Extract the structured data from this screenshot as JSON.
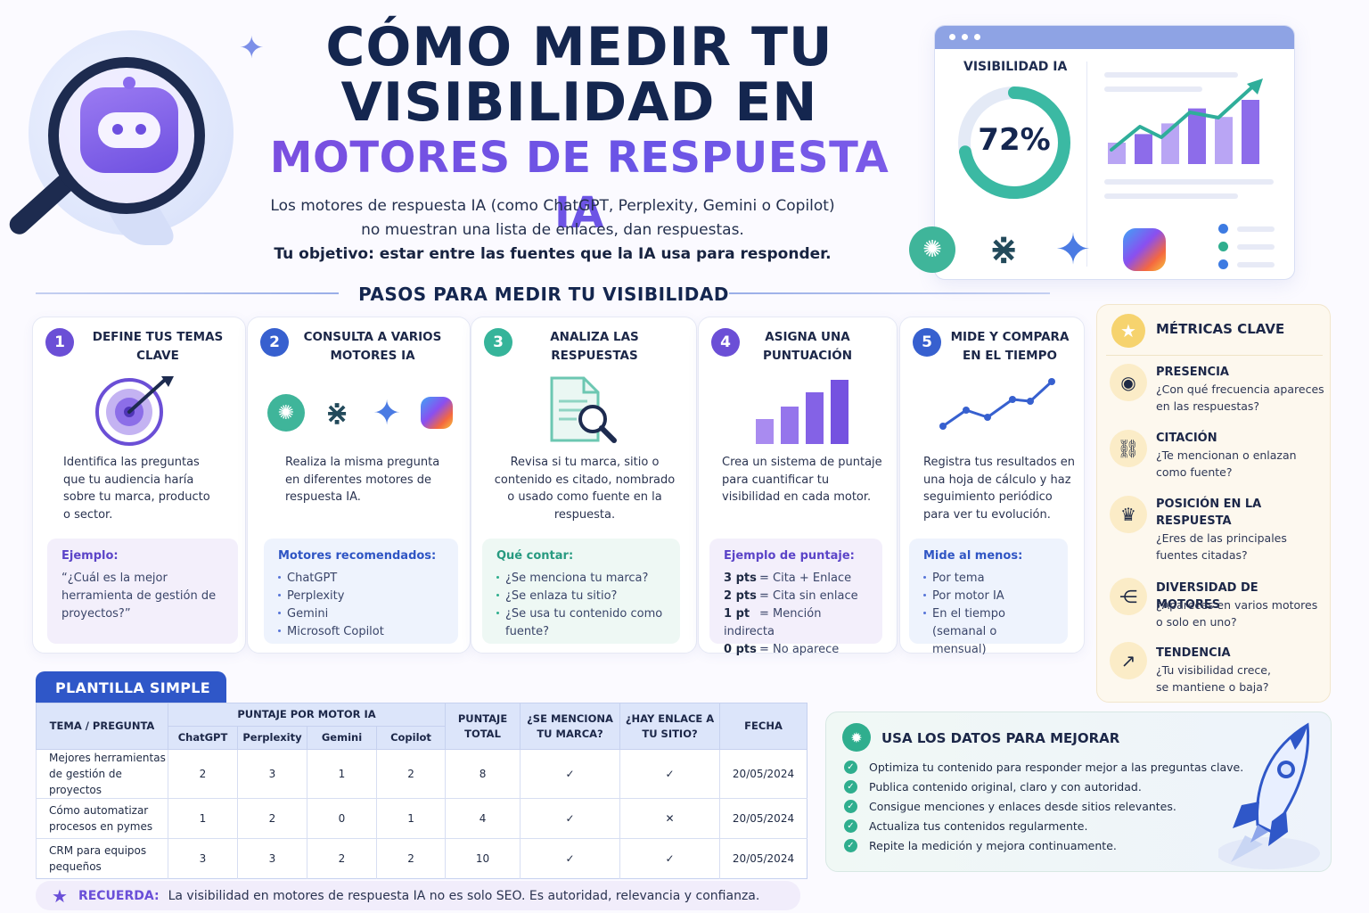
{
  "hero": {
    "title_line1": "CÓMO MEDIR TU",
    "title_line2": "VISIBILIDAD EN",
    "title_line3": "MOTORES DE RESPUESTA IA",
    "intro_line1": "Los motores de respuesta IA (como ChatGPT, Perplexity, Gemini o Copilot)",
    "intro_line2": "no muestran una lista de enlaces, dan respuestas.",
    "intro_bold": "Tu objetivo: estar entre las fuentes que la IA usa para responder."
  },
  "dashboard": {
    "label": "VISIBILIDAD IA",
    "value_text": "72%",
    "value": 0.72,
    "bars": [
      20,
      28,
      38,
      52,
      44,
      60
    ],
    "engines": [
      "chatgpt-icon",
      "perplexity-icon",
      "gemini-icon",
      "copilot-icon"
    ]
  },
  "steps_title": "PASOS PARA MEDIR TU VISIBILIDAD",
  "steps": [
    {
      "number": "1",
      "title": "DEFINE TUS TEMAS CLAVE",
      "description": "Identifica las preguntas que tu audiencia haría sobre tu marca, producto o sector.",
      "box_title": "Ejemplo:",
      "box_text": "“¿Cuál es la mejor herramienta de gestión de proyectos?”",
      "color": "#6b4fd6",
      "box_bg": "#f3effb",
      "box_title_color": "#5b44c8"
    },
    {
      "number": "2",
      "title": "CONSULTA A VARIOS MOTORES IA",
      "description": "Realiza la misma pregunta en diferentes motores de respuesta IA.",
      "box_title": "Motores recomendados:",
      "box_items": [
        "ChatGPT",
        "Perplexity",
        "Gemini",
        "Microsoft Copilot"
      ],
      "color": "#3760cf",
      "box_bg": "#eef3fd",
      "box_title_color": "#2f55c4"
    },
    {
      "number": "3",
      "title": "ANALIZA LAS RESPUESTAS",
      "description": "Revisa si tu marca, sitio o contenido es citado, nombrado o usado como fuente en la respuesta.",
      "box_title": "Qué contar:",
      "box_items": [
        "¿Se menciona tu marca?",
        "¿Se enlaza tu sitio?",
        "¿Se usa tu contenido como fuente?"
      ],
      "color": "#36b49a",
      "box_bg": "#eef8f4",
      "box_title_color": "#279a80"
    },
    {
      "number": "4",
      "title": "ASIGNA UNA PUNTUACIÓN",
      "description": "Crea un sistema de puntaje para cuantificar tu visibilidad en cada motor.",
      "box_title": "Ejemplo de puntaje:",
      "scores": [
        {
          "pts": "3 pts",
          "label": "= Cita + Enlace"
        },
        {
          "pts": "2 pts",
          "label": "= Cita sin enlace"
        },
        {
          "pts": "1 pt",
          "label": "= Mención indirecta"
        },
        {
          "pts": "0 pts",
          "label": "= No aparece"
        }
      ],
      "color": "#6b4fd6",
      "box_bg": "#f3effb",
      "box_title_color": "#5b44c8"
    },
    {
      "number": "5",
      "title": "MIDE Y COMPARA EN EL TIEMPO",
      "description": "Registra tus resultados en una hoja de cálculo y haz seguimiento periódico para ver tu evolución.",
      "box_title": "Mide al menos:",
      "box_items": [
        "Por tema",
        "Por motor IA",
        "En el tiempo (semanal o mensual)"
      ],
      "color": "#3760cf",
      "box_bg": "#eef3fd",
      "box_title_color": "#2f55c4"
    }
  ],
  "metrics": {
    "title": "MÉTRICAS CLAVE",
    "items": [
      {
        "icon": "eye-icon",
        "glyph": "◉",
        "title": "PRESENCIA",
        "desc": "¿Con qué frecuencia apareces en las respuestas?"
      },
      {
        "icon": "link-icon",
        "glyph": "⛓",
        "title": "CITACIÓN",
        "desc": "¿Te mencionan o enlazan como fuente?"
      },
      {
        "icon": "trophy-icon",
        "glyph": "🏆",
        "title": "POSICIÓN EN LA RESPUESTA",
        "desc": "¿Eres de las principales fuentes citadas?"
      },
      {
        "icon": "share-icon",
        "glyph": "⋲",
        "title": "DIVERSIDAD DE MOTORES",
        "desc": "¿Apareces en varios motores o solo en uno?"
      },
      {
        "icon": "trend-icon",
        "glyph": "↗",
        "title": "TENDENCIA",
        "desc": "¿Tu visibilidad crece, se mantiene o baja?"
      }
    ]
  },
  "template": {
    "tab_label": "PLANTILLA SIMPLE",
    "headers": {
      "topic": "TEMA / PREGUNTA",
      "group": "PUNTAJE POR MOTOR IA",
      "engines": [
        "ChatGPT",
        "Perplexity",
        "Gemini",
        "Copilot"
      ],
      "total": "PUNTAJE TOTAL",
      "mention": "¿SE MENCIONA TU MARCA?",
      "link": "¿HAY ENLACE A TU SITIO?",
      "date": "FECHA"
    },
    "rows": [
      {
        "topic": "Mejores herramientas de gestión de proyectos",
        "scores": [
          "2",
          "3",
          "1",
          "2"
        ],
        "total": "8",
        "mention": "✓",
        "link": "✓",
        "date": "20/05/2024"
      },
      {
        "topic": "Cómo automatizar procesos en pymes",
        "scores": [
          "1",
          "2",
          "0",
          "1"
        ],
        "total": "4",
        "mention": "✓",
        "link": "✕",
        "date": "20/05/2024"
      },
      {
        "topic": "CRM para equipos pequeños",
        "scores": [
          "3",
          "3",
          "2",
          "2"
        ],
        "total": "10",
        "mention": "✓",
        "link": "✓",
        "date": "20/05/2024"
      }
    ]
  },
  "use_data": {
    "title": "USA LOS DATOS PARA MEJORAR",
    "items": [
      "Optimiza tu contenido para responder mejor a las preguntas clave.",
      "Publica contenido original, claro y con autoridad.",
      "Consigue menciones y enlaces desde sitios relevantes.",
      "Actualiza tus contenidos regularmente.",
      "Repite la medición y mejora continuamente."
    ]
  },
  "reminder": {
    "label": "RECUERDA:",
    "text": "La visibilidad en motores de respuesta IA no es solo SEO. Es autoridad, relevancia y confianza."
  }
}
